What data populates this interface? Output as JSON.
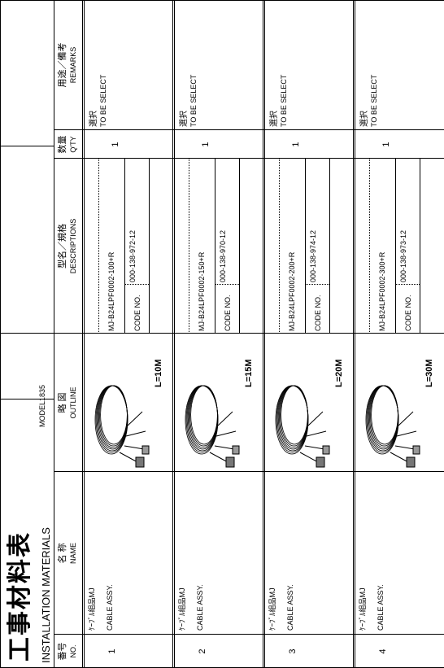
{
  "header": {
    "title": "工事材料表",
    "subtitle": "INSTALLATION MATERIALS",
    "model": "MODEL1835"
  },
  "columns": [
    {
      "ja": "番号",
      "en": "NO."
    },
    {
      "ja": "名 称",
      "en": "NAME"
    },
    {
      "ja": "略 図",
      "en": "OUTLINE"
    },
    {
      "ja": "型名／規格",
      "en": "DESCRIPTIONS"
    },
    {
      "ja": "数量",
      "en": "Q'TY"
    },
    {
      "ja": "用途／備考",
      "en": "REMARKS"
    }
  ],
  "rows": [
    {
      "no": "1",
      "name_ja": "ｹｰﾌﾞﾙ組品MJ",
      "name_en": "CABLE ASSY.",
      "length": "L=10M",
      "model": "MJ-B24LPF0002-100+R",
      "code_label": "CODE NO.",
      "code": "000-138-972-12",
      "qty": "1",
      "remarks_ja": "選択",
      "remarks_en": "TO BE SELECT"
    },
    {
      "no": "2",
      "name_ja": "ｹｰﾌﾞﾙ組品MJ",
      "name_en": "CABLE ASSY.",
      "length": "L=15M",
      "model": "MJ-B24LPF0002-150+R",
      "code_label": "CODE NO.",
      "code": "000-138-970-12",
      "qty": "1",
      "remarks_ja": "選択",
      "remarks_en": "TO BE SELECT"
    },
    {
      "no": "3",
      "name_ja": "ｹｰﾌﾞﾙ組品MJ",
      "name_en": "CABLE ASSY.",
      "length": "L=20M",
      "model": "MJ-B24LPF0002-200+R",
      "code_label": "CODE NO.",
      "code": "000-138-974-12",
      "qty": "1",
      "remarks_ja": "選択",
      "remarks_en": "TO BE SELECT"
    },
    {
      "no": "4",
      "name_ja": "ｹｰﾌﾞﾙ組品MJ",
      "name_en": "CABLE ASSY.",
      "length": "L=30M",
      "model": "MJ-B24LPF0002-300+R",
      "code_label": "CODE NO.",
      "code": "000-138-973-12",
      "qty": "1",
      "remarks_ja": "選択",
      "remarks_en": "TO BE SELECT"
    }
  ]
}
